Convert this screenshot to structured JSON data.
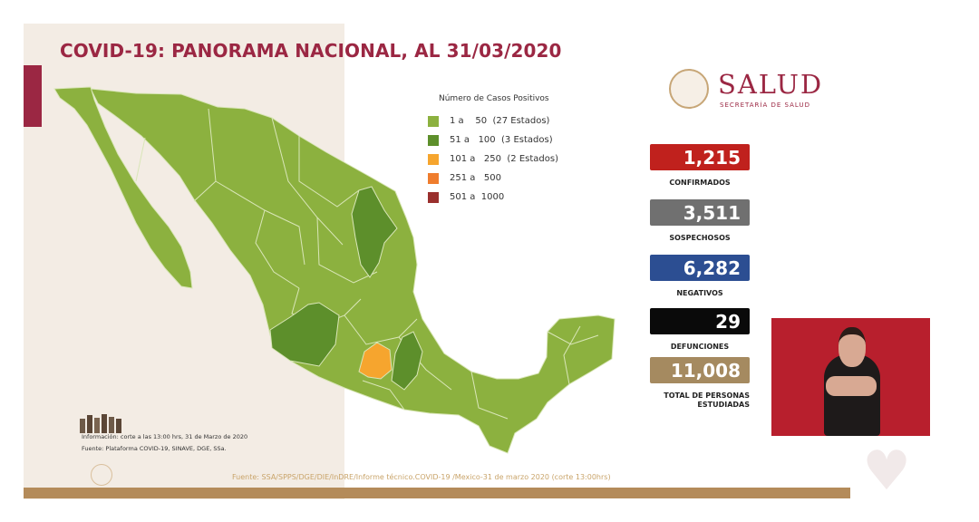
{
  "title": "COVID-19: PANORAMA NACIONAL, AL 31/03/2020",
  "legend": {
    "title": "Número de Casos Positivos",
    "items": [
      {
        "label": "1 a    50  (27 Estados)",
        "color": "#8cb13f"
      },
      {
        "label": "51 a   100  (3 Estados)",
        "color": "#5d8f2b"
      },
      {
        "label": "101 a   250  (2 Estados)",
        "color": "#f6a52e"
      },
      {
        "label": "251 a   500",
        "color": "#ef7d2e"
      },
      {
        "label": "501 a  1000",
        "color": "#9a2f2d"
      }
    ]
  },
  "logo": {
    "main": "SALUD",
    "sub": "SECRETARÍA DE SALUD",
    "icon": "coat-of-arms-icon"
  },
  "stats": [
    {
      "value": "1,215",
      "label": "CONFIRMADOS",
      "color": "#c0211d"
    },
    {
      "value": "3,511",
      "label": "SOSPECHOSOS",
      "color": "#707070"
    },
    {
      "value": "6,282",
      "label": "NEGATIVOS",
      "color": "#2c4e92"
    },
    {
      "value": "29",
      "label": "DEFUNCIONES",
      "color": "#0a0a0a"
    },
    {
      "value": "11,008",
      "label": "TOTAL DE PERSONAS ESTUDIADAS",
      "color": "#a58a60"
    }
  ],
  "footnotes": {
    "cutoff": "Información: corte a las 13:00 hrs, 31 de Marzo de 2020",
    "platform": "Fuente: Plataforma COVID-19, SINAVE, DGE, SSa."
  },
  "source": "Fuente: SSA/SPPS/DGE/DIE/InDRE/Informe técnico.COVID-19 /Mexico-31 de marzo 2020 (corte 13:00hrs)",
  "map_colors": {
    "base": "#8cb13f",
    "border": "#d9e6b8",
    "mid": "#5d8f2b",
    "high": "#f6a52e"
  }
}
